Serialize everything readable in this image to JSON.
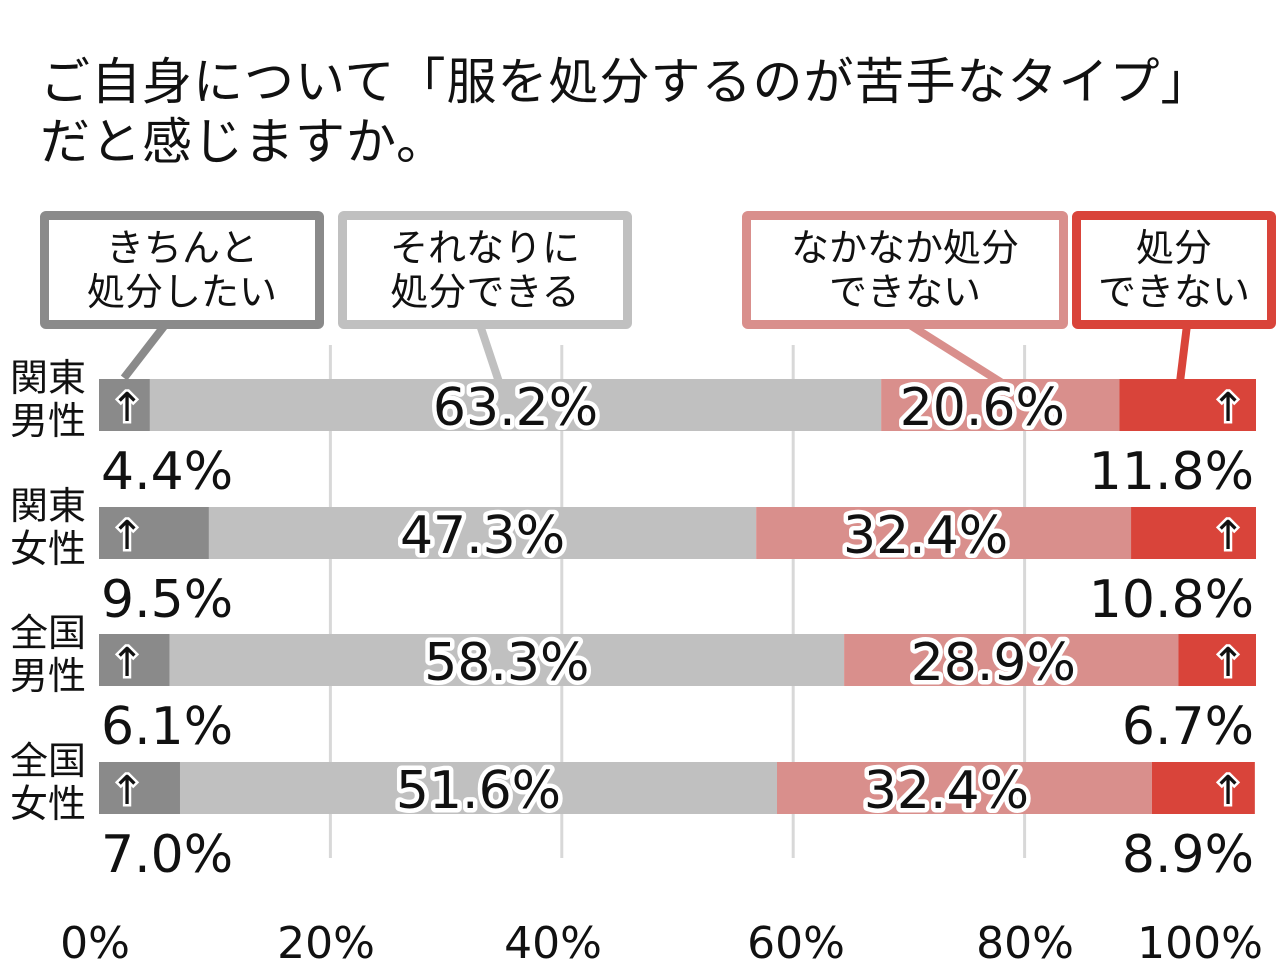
{
  "title": {
    "line1": "ご自身について「服を処分するのが苦手なタイプ」",
    "line2": "だと感じますか。"
  },
  "colors": {
    "s1": "#8a8a8a",
    "s2": "#c0c0c0",
    "s3": "#d98f8c",
    "s4": "#d9443a",
    "grid": "#d8d8d8"
  },
  "legend": [
    {
      "line1": "きちんと",
      "line2": "処分したい"
    },
    {
      "line1": "それなりに",
      "line2": "処分できる"
    },
    {
      "line1": "なかなか処分",
      "line2": "できない"
    },
    {
      "line1": "処分",
      "line2": "できない"
    }
  ],
  "chart_data": {
    "type": "bar",
    "orientation": "horizontal",
    "stacked": true,
    "categories": [
      {
        "line1": "関東",
        "line2": "男性"
      },
      {
        "line1": "関東",
        "line2": "女性"
      },
      {
        "line1": "全国",
        "line2": "男性"
      },
      {
        "line1": "全国",
        "line2": "女性"
      }
    ],
    "series": [
      {
        "name": "きちんと処分したい",
        "values": [
          4.4,
          9.5,
          6.1,
          7.0
        ],
        "labels": [
          "4.4%",
          "9.5%",
          "6.1%",
          "7.0%"
        ]
      },
      {
        "name": "それなりに処分できる",
        "values": [
          63.2,
          47.3,
          58.3,
          51.6
        ],
        "labels": [
          "63.2%",
          "47.3%",
          "58.3%",
          "51.6%"
        ]
      },
      {
        "name": "なかなか処分できない",
        "values": [
          20.6,
          32.4,
          28.9,
          32.4
        ],
        "labels": [
          "20.6%",
          "32.4%",
          "28.9%",
          "32.4%"
        ]
      },
      {
        "name": "処分できない",
        "values": [
          11.8,
          10.8,
          6.7,
          8.9
        ],
        "labels": [
          "11.8%",
          "10.8%",
          "6.7%",
          "8.9%"
        ]
      }
    ],
    "xlim": [
      0,
      100
    ],
    "xticks": [
      0,
      20,
      40,
      60,
      80,
      100
    ],
    "xtick_labels": [
      "0%",
      "20%",
      "40%",
      "60%",
      "80%",
      "100%"
    ],
    "arrow_glyph": "↑",
    "grid": true
  }
}
